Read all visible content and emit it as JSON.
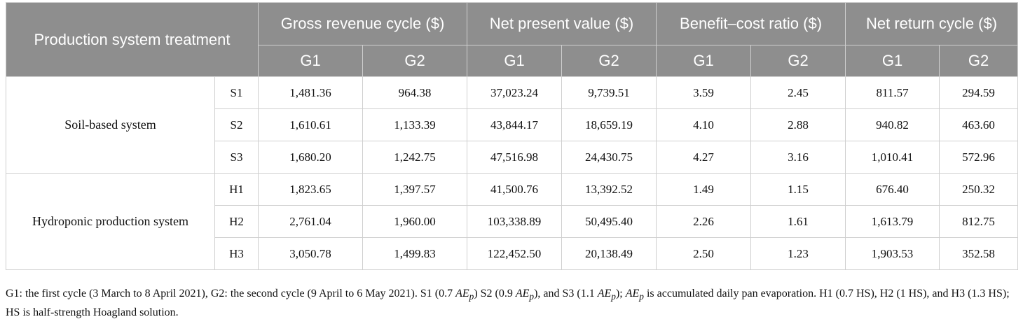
{
  "table": {
    "header": {
      "row_label": "Production system treatment",
      "metrics": [
        "Gross revenue cycle ($)",
        "Net present value ($)",
        "Benefit–cost ratio ($)",
        "Net return cycle ($)"
      ],
      "cycles": [
        "G1",
        "G2"
      ]
    },
    "groups": [
      {
        "name": "Soil-based system",
        "rows": [
          {
            "code": "S1",
            "values": [
              "1,481.36",
              "964.38",
              "37,023.24",
              "9,739.51",
              "3.59",
              "2.45",
              "811.57",
              "294.59"
            ]
          },
          {
            "code": "S2",
            "values": [
              "1,610.61",
              "1,133.39",
              "43,844.17",
              "18,659.19",
              "4.10",
              "2.88",
              "940.82",
              "463.60"
            ]
          },
          {
            "code": "S3",
            "values": [
              "1,680.20",
              "1,242.75",
              "47,516.98",
              "24,430.75",
              "4.27",
              "3.16",
              "1,010.41",
              "572.96"
            ]
          }
        ]
      },
      {
        "name": "Hydroponic production system",
        "rows": [
          {
            "code": "H1",
            "values": [
              "1,823.65",
              "1,397.57",
              "41,500.76",
              "13,392.52",
              "1.49",
              "1.15",
              "676.40",
              "250.32"
            ]
          },
          {
            "code": "H2",
            "values": [
              "2,761.04",
              "1,960.00",
              "103,338.89",
              "50,495.40",
              "2.26",
              "1.61",
              "1,613.79",
              "812.75"
            ]
          },
          {
            "code": "H3",
            "values": [
              "3,050.78",
              "1,499.83",
              "122,452.50",
              "20,138.49",
              "2.50",
              "1.23",
              "1,903.53",
              "352.58"
            ]
          }
        ]
      }
    ]
  },
  "footnote": {
    "p1": "G1: the first cycle (3 March to 8 April 2021), G2: the second cycle (9 April to 6 May 2021). S1 (0.7 ",
    "p2": ") S2 (0.9 ",
    "p3": "), and S3 (1.1 ",
    "p4": "); ",
    "p5": " is accumulated daily pan evaporation. H1 (0.7 HS), H2 (1 HS), and H3 (1.3 HS); HS is half-strength Hoagland solution.",
    "symbol": "AE",
    "symbol_sub": "p"
  }
}
